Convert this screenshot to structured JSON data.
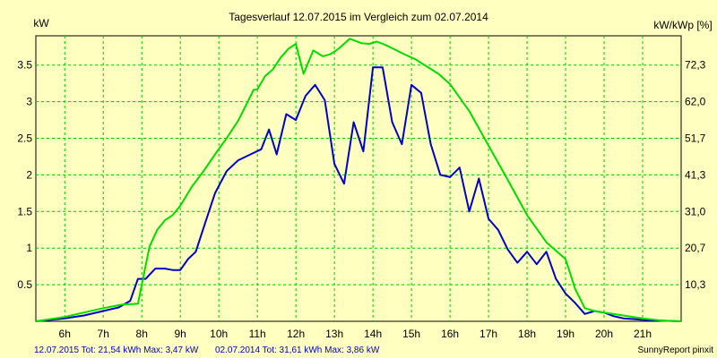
{
  "chart_data": {
    "type": "line",
    "title": "Tagesverlauf 12.07.2015 im Vergleich zum 02.07.2014",
    "ylabel_left": "kW",
    "ylabel_right": "kW/kWp [%]",
    "credit": "SunnyReport pinxit",
    "xlim": [
      5.25,
      22
    ],
    "ylim_left": [
      0,
      3.9
    ],
    "ylim_right": [
      0,
      80.9
    ],
    "x_ticks": [
      {
        "value": 6,
        "label": "6h"
      },
      {
        "value": 7,
        "label": "7h"
      },
      {
        "value": 8,
        "label": "8h"
      },
      {
        "value": 9,
        "label": "9h"
      },
      {
        "value": 10,
        "label": "10h"
      },
      {
        "value": 11,
        "label": "11h"
      },
      {
        "value": 12,
        "label": "12h"
      },
      {
        "value": 13,
        "label": "13h"
      },
      {
        "value": 14,
        "label": "14h"
      },
      {
        "value": 15,
        "label": "15h"
      },
      {
        "value": 16,
        "label": "16h"
      },
      {
        "value": 17,
        "label": "17h"
      },
      {
        "value": 18,
        "label": "18h"
      },
      {
        "value": 19,
        "label": "19h"
      },
      {
        "value": 20,
        "label": "20h"
      },
      {
        "value": 21,
        "label": "21h"
      }
    ],
    "y_ticks_left": [
      {
        "value": 0.5,
        "label": "0.5"
      },
      {
        "value": 1,
        "label": "1"
      },
      {
        "value": 1.5,
        "label": "1.5"
      },
      {
        "value": 2,
        "label": "2"
      },
      {
        "value": 2.5,
        "label": "2.5"
      },
      {
        "value": 3,
        "label": "3"
      },
      {
        "value": 3.5,
        "label": "3.5"
      }
    ],
    "y_ticks_right": [
      {
        "value": 0.5,
        "label": "10,3"
      },
      {
        "value": 1,
        "label": "20,7"
      },
      {
        "value": 1.5,
        "label": "31,0"
      },
      {
        "value": 2,
        "label": "41,3"
      },
      {
        "value": 2.5,
        "label": "51,7"
      },
      {
        "value": 3,
        "label": "62,0"
      },
      {
        "value": 3.5,
        "label": "72,3"
      }
    ],
    "grid": true,
    "legend": [
      {
        "text": "12.07.2015 Tot: 21,54 kWh Max: 3,47 kW",
        "color": "#0000cc"
      },
      {
        "text": "02.07.2014 Tot: 31,61 kWh Max: 3,86 kW",
        "color": "#00dd00"
      }
    ],
    "series": [
      {
        "color": "#0000cc",
        "x": [
          5.25,
          6.0,
          6.5,
          7.0,
          7.4,
          7.7,
          7.9,
          8.1,
          8.35,
          8.6,
          8.8,
          9.0,
          9.2,
          9.4,
          9.65,
          9.9,
          10.2,
          10.5,
          10.9,
          11.1,
          11.3,
          11.5,
          11.75,
          12.0,
          12.25,
          12.5,
          12.75,
          13.0,
          13.25,
          13.5,
          13.75,
          14.0,
          14.25,
          14.5,
          14.75,
          15.0,
          15.25,
          15.5,
          15.75,
          16.0,
          16.25,
          16.5,
          16.75,
          17.0,
          17.25,
          17.5,
          17.75,
          18.0,
          18.25,
          18.5,
          18.75,
          19.0,
          19.25,
          19.5,
          19.75,
          20.0,
          20.25,
          20.5,
          20.75,
          21.0,
          21.5,
          22.0
        ],
        "y": [
          0.0,
          0.04,
          0.08,
          0.14,
          0.19,
          0.28,
          0.58,
          0.58,
          0.72,
          0.72,
          0.7,
          0.7,
          0.85,
          0.95,
          1.35,
          1.75,
          2.05,
          2.2,
          2.3,
          2.35,
          2.62,
          2.28,
          2.83,
          2.75,
          3.08,
          3.23,
          3.02,
          2.15,
          1.88,
          2.72,
          2.32,
          3.47,
          3.47,
          2.72,
          2.42,
          3.23,
          3.12,
          2.42,
          2.0,
          1.97,
          2.1,
          1.5,
          1.95,
          1.4,
          1.25,
          0.98,
          0.8,
          0.95,
          0.78,
          0.95,
          0.58,
          0.38,
          0.25,
          0.1,
          0.14,
          0.12,
          0.07,
          0.04,
          0.03,
          0.02,
          0.01,
          0.0
        ]
      },
      {
        "color": "#00dd00",
        "x": [
          5.25,
          6.0,
          6.5,
          7.0,
          7.5,
          7.9,
          8.2,
          8.4,
          8.6,
          8.8,
          9.0,
          9.3,
          9.6,
          9.9,
          10.2,
          10.5,
          10.75,
          10.9,
          11.0,
          11.2,
          11.4,
          11.6,
          11.8,
          12.0,
          12.2,
          12.45,
          12.7,
          12.9,
          13.1,
          13.4,
          13.7,
          13.9,
          14.1,
          14.3,
          14.5,
          14.8,
          15.1,
          15.4,
          15.7,
          16.0,
          16.5,
          17.0,
          17.5,
          18.0,
          18.5,
          19.0,
          19.25,
          19.5,
          19.75,
          20.0,
          20.5,
          21.0,
          21.5,
          22.0
        ],
        "y": [
          0.0,
          0.06,
          0.12,
          0.18,
          0.23,
          0.24,
          1.02,
          1.25,
          1.38,
          1.45,
          1.58,
          1.84,
          2.05,
          2.28,
          2.5,
          2.74,
          3.0,
          3.16,
          3.17,
          3.35,
          3.44,
          3.6,
          3.72,
          3.79,
          3.38,
          3.7,
          3.62,
          3.65,
          3.72,
          3.86,
          3.8,
          3.79,
          3.82,
          3.78,
          3.73,
          3.65,
          3.58,
          3.48,
          3.38,
          3.24,
          2.87,
          2.4,
          1.93,
          1.45,
          1.08,
          0.85,
          0.44,
          0.18,
          0.14,
          0.12,
          0.08,
          0.04,
          0.01,
          0.0
        ]
      }
    ]
  }
}
